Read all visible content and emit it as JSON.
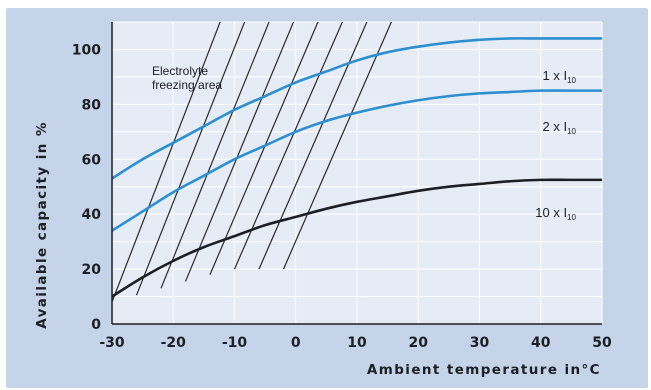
{
  "colors": {
    "outer_background": "#c5d4e8",
    "plot_background": "#e6ecf5",
    "grid": "#ffffff",
    "hatch": "#2a2a2a",
    "axis": "#1c1f24"
  },
  "chart_data": {
    "type": "line",
    "xlabel": "Ambient temperature in°C",
    "ylabel": "Available capacity in %",
    "xlim": [
      -30,
      50
    ],
    "ylim": [
      0,
      110
    ],
    "x_ticks": [
      -30,
      -20,
      -10,
      0,
      10,
      20,
      30,
      40,
      50
    ],
    "y_ticks": [
      0,
      20,
      40,
      60,
      80,
      100
    ],
    "grid": true,
    "series": [
      {
        "name": "1 x I10",
        "label_main": "1 x I",
        "label_sub": "10",
        "color": "#2c8fd0",
        "x": [
          -30,
          -25,
          -20,
          -15,
          -10,
          -5,
          0,
          5,
          10,
          15,
          20,
          25,
          30,
          35,
          40,
          45,
          50
        ],
        "y": [
          53,
          60,
          66,
          72,
          78,
          83,
          88,
          92,
          96,
          99,
          101,
          102.5,
          103.5,
          104,
          104,
          104,
          104
        ]
      },
      {
        "name": "2 x I10",
        "label_main": "2 x I",
        "label_sub": "10",
        "color": "#2c8fd0",
        "x": [
          -30,
          -25,
          -20,
          -15,
          -10,
          -5,
          0,
          5,
          10,
          15,
          20,
          25,
          30,
          35,
          40,
          45,
          50
        ],
        "y": [
          34,
          41,
          48,
          54,
          60,
          65,
          70,
          74,
          77,
          79.5,
          81.5,
          83,
          84,
          84.5,
          85,
          85,
          85
        ]
      },
      {
        "name": "10 x I10",
        "label_main": "10 x I",
        "label_sub": "10",
        "color": "#1c1f24",
        "x": [
          -30,
          -25,
          -20,
          -15,
          -10,
          -5,
          0,
          5,
          10,
          15,
          20,
          25,
          30,
          35,
          40,
          45,
          50
        ],
        "y": [
          10,
          17,
          23,
          28,
          32,
          36,
          39,
          42,
          44.5,
          46.5,
          48.5,
          50,
          51,
          52,
          52.5,
          52.5,
          52.5
        ]
      }
    ],
    "annotations": [
      {
        "text_line1": "Electrolyte",
        "text_line2": "freezing area"
      }
    ]
  }
}
